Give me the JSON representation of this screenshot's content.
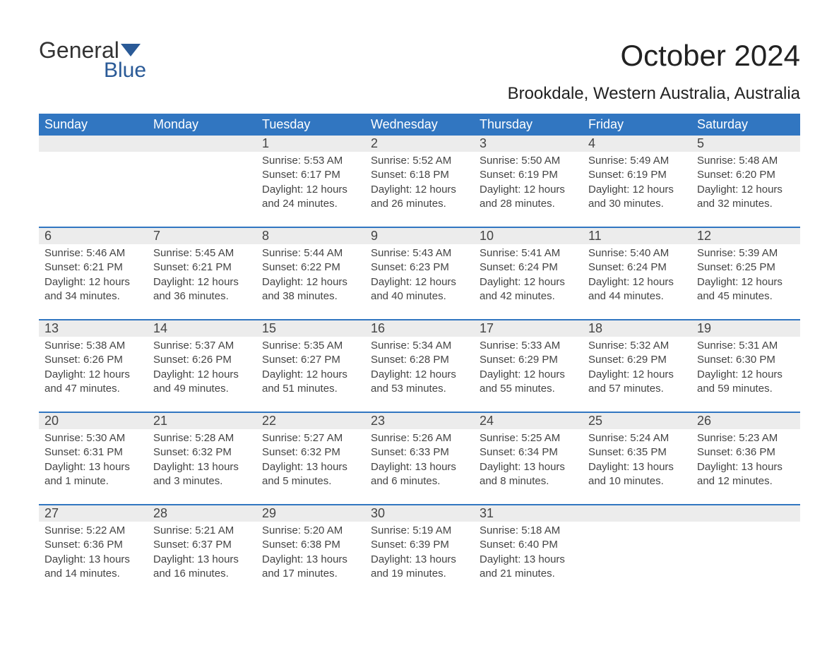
{
  "logo": {
    "line1": "General",
    "line2": "Blue"
  },
  "title": "October 2024",
  "subtitle": "Brookdale, Western Australia, Australia",
  "colors": {
    "header_bg": "#3176c1",
    "divider": "#3176c1",
    "daynum_bg": "#ececec",
    "page_bg": "#ffffff",
    "text": "#333333"
  },
  "day_headers": [
    "Sunday",
    "Monday",
    "Tuesday",
    "Wednesday",
    "Thursday",
    "Friday",
    "Saturday"
  ],
  "weeks": [
    [
      null,
      null,
      {
        "n": "1",
        "sunrise": "Sunrise: 5:53 AM",
        "sunset": "Sunset: 6:17 PM",
        "daylight1": "Daylight: 12 hours",
        "daylight2": "and 24 minutes."
      },
      {
        "n": "2",
        "sunrise": "Sunrise: 5:52 AM",
        "sunset": "Sunset: 6:18 PM",
        "daylight1": "Daylight: 12 hours",
        "daylight2": "and 26 minutes."
      },
      {
        "n": "3",
        "sunrise": "Sunrise: 5:50 AM",
        "sunset": "Sunset: 6:19 PM",
        "daylight1": "Daylight: 12 hours",
        "daylight2": "and 28 minutes."
      },
      {
        "n": "4",
        "sunrise": "Sunrise: 5:49 AM",
        "sunset": "Sunset: 6:19 PM",
        "daylight1": "Daylight: 12 hours",
        "daylight2": "and 30 minutes."
      },
      {
        "n": "5",
        "sunrise": "Sunrise: 5:48 AM",
        "sunset": "Sunset: 6:20 PM",
        "daylight1": "Daylight: 12 hours",
        "daylight2": "and 32 minutes."
      }
    ],
    [
      {
        "n": "6",
        "sunrise": "Sunrise: 5:46 AM",
        "sunset": "Sunset: 6:21 PM",
        "daylight1": "Daylight: 12 hours",
        "daylight2": "and 34 minutes."
      },
      {
        "n": "7",
        "sunrise": "Sunrise: 5:45 AM",
        "sunset": "Sunset: 6:21 PM",
        "daylight1": "Daylight: 12 hours",
        "daylight2": "and 36 minutes."
      },
      {
        "n": "8",
        "sunrise": "Sunrise: 5:44 AM",
        "sunset": "Sunset: 6:22 PM",
        "daylight1": "Daylight: 12 hours",
        "daylight2": "and 38 minutes."
      },
      {
        "n": "9",
        "sunrise": "Sunrise: 5:43 AM",
        "sunset": "Sunset: 6:23 PM",
        "daylight1": "Daylight: 12 hours",
        "daylight2": "and 40 minutes."
      },
      {
        "n": "10",
        "sunrise": "Sunrise: 5:41 AM",
        "sunset": "Sunset: 6:24 PM",
        "daylight1": "Daylight: 12 hours",
        "daylight2": "and 42 minutes."
      },
      {
        "n": "11",
        "sunrise": "Sunrise: 5:40 AM",
        "sunset": "Sunset: 6:24 PM",
        "daylight1": "Daylight: 12 hours",
        "daylight2": "and 44 minutes."
      },
      {
        "n": "12",
        "sunrise": "Sunrise: 5:39 AM",
        "sunset": "Sunset: 6:25 PM",
        "daylight1": "Daylight: 12 hours",
        "daylight2": "and 45 minutes."
      }
    ],
    [
      {
        "n": "13",
        "sunrise": "Sunrise: 5:38 AM",
        "sunset": "Sunset: 6:26 PM",
        "daylight1": "Daylight: 12 hours",
        "daylight2": "and 47 minutes."
      },
      {
        "n": "14",
        "sunrise": "Sunrise: 5:37 AM",
        "sunset": "Sunset: 6:26 PM",
        "daylight1": "Daylight: 12 hours",
        "daylight2": "and 49 minutes."
      },
      {
        "n": "15",
        "sunrise": "Sunrise: 5:35 AM",
        "sunset": "Sunset: 6:27 PM",
        "daylight1": "Daylight: 12 hours",
        "daylight2": "and 51 minutes."
      },
      {
        "n": "16",
        "sunrise": "Sunrise: 5:34 AM",
        "sunset": "Sunset: 6:28 PM",
        "daylight1": "Daylight: 12 hours",
        "daylight2": "and 53 minutes."
      },
      {
        "n": "17",
        "sunrise": "Sunrise: 5:33 AM",
        "sunset": "Sunset: 6:29 PM",
        "daylight1": "Daylight: 12 hours",
        "daylight2": "and 55 minutes."
      },
      {
        "n": "18",
        "sunrise": "Sunrise: 5:32 AM",
        "sunset": "Sunset: 6:29 PM",
        "daylight1": "Daylight: 12 hours",
        "daylight2": "and 57 minutes."
      },
      {
        "n": "19",
        "sunrise": "Sunrise: 5:31 AM",
        "sunset": "Sunset: 6:30 PM",
        "daylight1": "Daylight: 12 hours",
        "daylight2": "and 59 minutes."
      }
    ],
    [
      {
        "n": "20",
        "sunrise": "Sunrise: 5:30 AM",
        "sunset": "Sunset: 6:31 PM",
        "daylight1": "Daylight: 13 hours",
        "daylight2": "and 1 minute."
      },
      {
        "n": "21",
        "sunrise": "Sunrise: 5:28 AM",
        "sunset": "Sunset: 6:32 PM",
        "daylight1": "Daylight: 13 hours",
        "daylight2": "and 3 minutes."
      },
      {
        "n": "22",
        "sunrise": "Sunrise: 5:27 AM",
        "sunset": "Sunset: 6:32 PM",
        "daylight1": "Daylight: 13 hours",
        "daylight2": "and 5 minutes."
      },
      {
        "n": "23",
        "sunrise": "Sunrise: 5:26 AM",
        "sunset": "Sunset: 6:33 PM",
        "daylight1": "Daylight: 13 hours",
        "daylight2": "and 6 minutes."
      },
      {
        "n": "24",
        "sunrise": "Sunrise: 5:25 AM",
        "sunset": "Sunset: 6:34 PM",
        "daylight1": "Daylight: 13 hours",
        "daylight2": "and 8 minutes."
      },
      {
        "n": "25",
        "sunrise": "Sunrise: 5:24 AM",
        "sunset": "Sunset: 6:35 PM",
        "daylight1": "Daylight: 13 hours",
        "daylight2": "and 10 minutes."
      },
      {
        "n": "26",
        "sunrise": "Sunrise: 5:23 AM",
        "sunset": "Sunset: 6:36 PM",
        "daylight1": "Daylight: 13 hours",
        "daylight2": "and 12 minutes."
      }
    ],
    [
      {
        "n": "27",
        "sunrise": "Sunrise: 5:22 AM",
        "sunset": "Sunset: 6:36 PM",
        "daylight1": "Daylight: 13 hours",
        "daylight2": "and 14 minutes."
      },
      {
        "n": "28",
        "sunrise": "Sunrise: 5:21 AM",
        "sunset": "Sunset: 6:37 PM",
        "daylight1": "Daylight: 13 hours",
        "daylight2": "and 16 minutes."
      },
      {
        "n": "29",
        "sunrise": "Sunrise: 5:20 AM",
        "sunset": "Sunset: 6:38 PM",
        "daylight1": "Daylight: 13 hours",
        "daylight2": "and 17 minutes."
      },
      {
        "n": "30",
        "sunrise": "Sunrise: 5:19 AM",
        "sunset": "Sunset: 6:39 PM",
        "daylight1": "Daylight: 13 hours",
        "daylight2": "and 19 minutes."
      },
      {
        "n": "31",
        "sunrise": "Sunrise: 5:18 AM",
        "sunset": "Sunset: 6:40 PM",
        "daylight1": "Daylight: 13 hours",
        "daylight2": "and 21 minutes."
      },
      null,
      null
    ]
  ]
}
